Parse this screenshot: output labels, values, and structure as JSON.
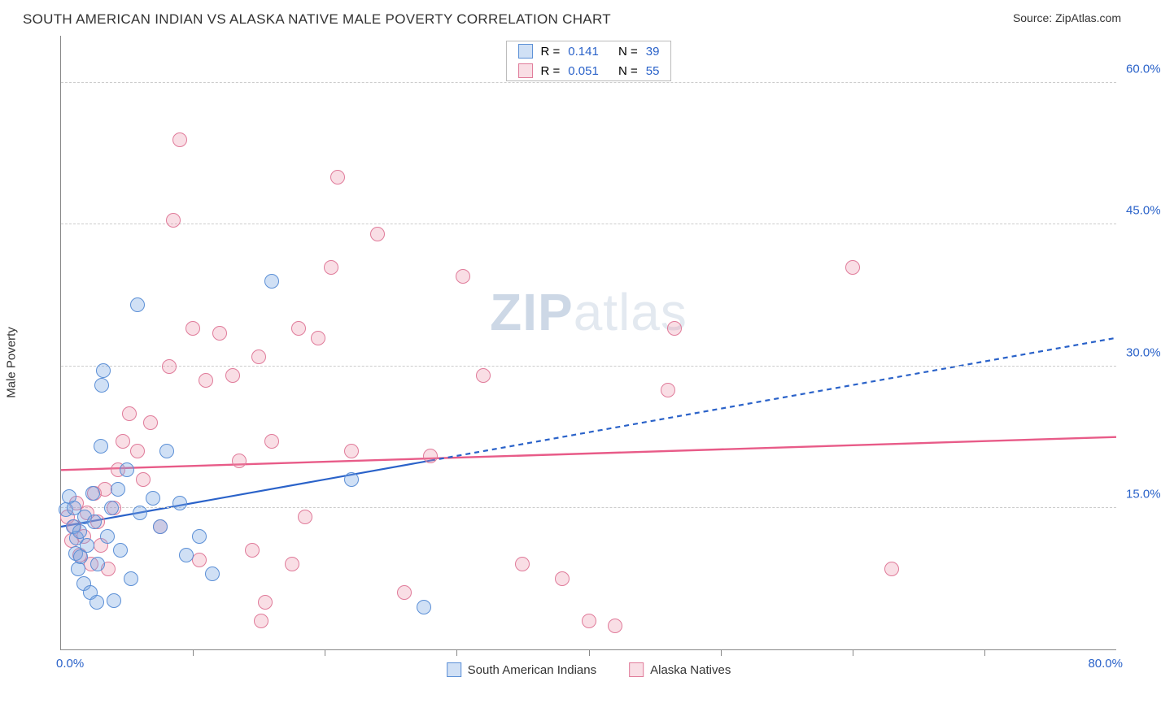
{
  "title": "SOUTH AMERICAN INDIAN VS ALASKA NATIVE MALE POVERTY CORRELATION CHART",
  "source_label": "Source: ",
  "source_name": "ZipAtlas.com",
  "watermark_bold": "ZIP",
  "watermark_rest": "atlas",
  "y_axis_label": "Male Poverty",
  "x": {
    "min": 0.0,
    "max": 80.0,
    "label_min": "0.0%",
    "label_max": "80.0%",
    "ticks": [
      10,
      20,
      30,
      40,
      50,
      60,
      70
    ],
    "label_color": "#2a62c9"
  },
  "y": {
    "min": 0.0,
    "max": 65.0,
    "grid": [
      15,
      30,
      45,
      60
    ],
    "labels": [
      "15.0%",
      "30.0%",
      "45.0%",
      "60.0%"
    ],
    "label_color": "#2a62c9"
  },
  "series": {
    "a": {
      "name": "South American Indians",
      "fill": "rgba(120,165,225,0.35)",
      "stroke": "#5b8fd6",
      "r_label": "R =",
      "r_value": "0.141",
      "n_label": "N =",
      "n_value": "39",
      "marker_radius": 9,
      "trend": {
        "type": "line",
        "x1": 0,
        "y1": 13.0,
        "x2": 80,
        "y2": 33.0,
        "solid_until_x": 28,
        "color": "#2a62c9",
        "width": 2.2,
        "dash": "6,5"
      },
      "points": [
        [
          0.4,
          14.8
        ],
        [
          0.6,
          16.2
        ],
        [
          0.9,
          13.0
        ],
        [
          1.0,
          15.0
        ],
        [
          1.1,
          10.2
        ],
        [
          1.2,
          11.8
        ],
        [
          1.3,
          8.5
        ],
        [
          1.4,
          12.5
        ],
        [
          1.5,
          9.8
        ],
        [
          1.7,
          7.0
        ],
        [
          1.8,
          14.0
        ],
        [
          2.0,
          11.0
        ],
        [
          2.2,
          6.0
        ],
        [
          2.4,
          16.5
        ],
        [
          2.5,
          13.5
        ],
        [
          2.8,
          9.0
        ],
        [
          3.0,
          21.5
        ],
        [
          3.1,
          28.0
        ],
        [
          3.2,
          29.5
        ],
        [
          3.5,
          12.0
        ],
        [
          3.8,
          15.0
        ],
        [
          4.0,
          5.2
        ],
        [
          4.3,
          17.0
        ],
        [
          4.5,
          10.5
        ],
        [
          5.0,
          19.0
        ],
        [
          5.3,
          7.5
        ],
        [
          5.8,
          36.5
        ],
        [
          6.0,
          14.5
        ],
        [
          7.0,
          16.0
        ],
        [
          7.5,
          13.0
        ],
        [
          8.0,
          21.0
        ],
        [
          9.0,
          15.5
        ],
        [
          9.5,
          10.0
        ],
        [
          10.5,
          12.0
        ],
        [
          11.5,
          8.0
        ],
        [
          16.0,
          39.0
        ],
        [
          22.0,
          18.0
        ],
        [
          27.5,
          4.5
        ],
        [
          2.7,
          5.0
        ]
      ]
    },
    "b": {
      "name": "Alaska Natives",
      "fill": "rgba(235,145,170,0.30)",
      "stroke": "#e07b9a",
      "r_label": "R =",
      "r_value": "0.051",
      "n_label": "N =",
      "n_value": "55",
      "marker_radius": 9,
      "trend": {
        "type": "line",
        "x1": 0,
        "y1": 19.0,
        "x2": 80,
        "y2": 22.5,
        "solid_until_x": 80,
        "color": "#e85b88",
        "width": 2.4,
        "dash": ""
      },
      "points": [
        [
          0.5,
          14.0
        ],
        [
          0.8,
          11.5
        ],
        [
          1.0,
          13.0
        ],
        [
          1.2,
          15.5
        ],
        [
          1.4,
          10.0
        ],
        [
          1.7,
          12.0
        ],
        [
          2.0,
          14.5
        ],
        [
          2.3,
          9.0
        ],
        [
          2.5,
          16.5
        ],
        [
          2.8,
          13.5
        ],
        [
          3.0,
          11.0
        ],
        [
          3.3,
          17.0
        ],
        [
          3.6,
          8.5
        ],
        [
          4.0,
          15.0
        ],
        [
          4.3,
          19.0
        ],
        [
          4.7,
          22.0
        ],
        [
          5.2,
          25.0
        ],
        [
          5.8,
          21.0
        ],
        [
          6.2,
          18.0
        ],
        [
          6.8,
          24.0
        ],
        [
          7.5,
          13.0
        ],
        [
          8.2,
          30.0
        ],
        [
          8.5,
          45.5
        ],
        [
          9.0,
          54.0
        ],
        [
          10.0,
          34.0
        ],
        [
          10.5,
          9.5
        ],
        [
          11.0,
          28.5
        ],
        [
          12.0,
          33.5
        ],
        [
          13.0,
          29.0
        ],
        [
          13.5,
          20.0
        ],
        [
          14.5,
          10.5
        ],
        [
          15.0,
          31.0
        ],
        [
          15.5,
          5.0
        ],
        [
          16.0,
          22.0
        ],
        [
          17.5,
          9.0
        ],
        [
          18.0,
          34.0
        ],
        [
          18.5,
          14.0
        ],
        [
          19.5,
          33.0
        ],
        [
          20.5,
          40.5
        ],
        [
          21.0,
          50.0
        ],
        [
          22.0,
          21.0
        ],
        [
          24.0,
          44.0
        ],
        [
          26.0,
          6.0
        ],
        [
          28.0,
          20.5
        ],
        [
          30.5,
          39.5
        ],
        [
          32.0,
          29.0
        ],
        [
          35.0,
          9.0
        ],
        [
          38.0,
          7.5
        ],
        [
          40.0,
          3.0
        ],
        [
          42.0,
          2.5
        ],
        [
          46.5,
          34.0
        ],
        [
          46.0,
          27.5
        ],
        [
          60.0,
          40.5
        ],
        [
          63.0,
          8.5
        ],
        [
          15.2,
          3.0
        ]
      ]
    }
  }
}
